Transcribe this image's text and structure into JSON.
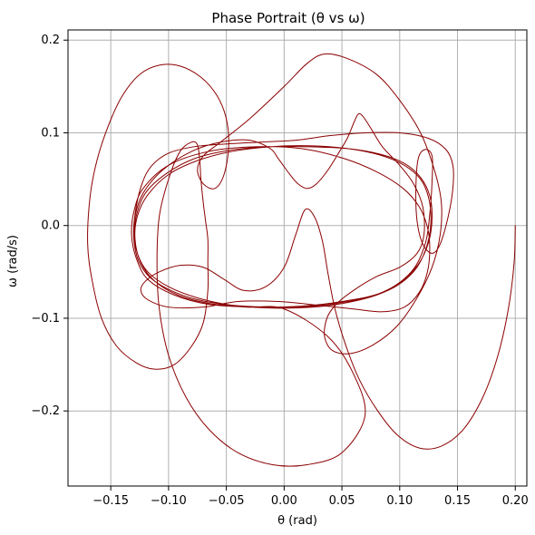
{
  "chart_data": {
    "type": "line",
    "title": "Phase Portrait (θ vs ω)",
    "xlabel": "θ (rad)",
    "ylabel": "ω (rad/s)",
    "xlim": [
      -0.187,
      0.21
    ],
    "ylim": [
      -0.281,
      0.211
    ],
    "xticks": [
      -0.15,
      -0.1,
      -0.05,
      0.0,
      0.05,
      0.1,
      0.15,
      0.2
    ],
    "xtick_labels": [
      "−0.15",
      "−0.10",
      "−0.05",
      "0.00",
      "0.05",
      "0.10",
      "0.15",
      "0.20"
    ],
    "yticks": [
      -0.2,
      -0.1,
      0.0,
      0.1,
      0.2
    ],
    "ytick_labels": [
      "−0.2",
      "−0.1",
      "0.0",
      "0.1",
      "0.2"
    ],
    "grid": true,
    "line_color": "#8b0000",
    "series": [
      {
        "points": [
          [
            0.2,
            0.0
          ],
          [
            0.199,
            -0.04
          ],
          [
            0.194,
            -0.09
          ],
          [
            0.185,
            -0.14
          ],
          [
            0.172,
            -0.185
          ],
          [
            0.155,
            -0.22
          ],
          [
            0.136,
            -0.238
          ],
          [
            0.117,
            -0.24
          ],
          [
            0.098,
            -0.226
          ],
          [
            0.081,
            -0.2
          ],
          [
            0.065,
            -0.166
          ],
          [
            0.053,
            -0.128
          ],
          [
            0.044,
            -0.09
          ],
          [
            0.038,
            -0.052
          ],
          [
            0.033,
            -0.016
          ],
          [
            0.026,
            0.01
          ],
          [
            0.018,
            0.017
          ],
          [
            0.01,
            -0.01
          ],
          [
            0.0,
            -0.045
          ],
          [
            -0.016,
            -0.066
          ],
          [
            -0.035,
            -0.07
          ],
          [
            -0.052,
            -0.058
          ],
          [
            -0.07,
            -0.045
          ],
          [
            -0.09,
            -0.043
          ],
          [
            -0.108,
            -0.05
          ],
          [
            -0.12,
            -0.06
          ],
          [
            -0.124,
            -0.07
          ],
          [
            -0.118,
            -0.08
          ],
          [
            -0.1,
            -0.088
          ],
          [
            -0.07,
            -0.088
          ],
          [
            -0.04,
            -0.082
          ],
          [
            -0.005,
            -0.082
          ],
          [
            0.03,
            -0.086
          ],
          [
            0.06,
            -0.09
          ],
          [
            0.085,
            -0.093
          ],
          [
            0.104,
            -0.088
          ],
          [
            0.117,
            -0.072
          ],
          [
            0.124,
            -0.05
          ],
          [
            0.126,
            -0.025
          ],
          [
            0.124,
            -0.002
          ],
          [
            0.117,
            0.02
          ],
          [
            0.103,
            0.04
          ],
          [
            0.08,
            0.058
          ],
          [
            0.05,
            0.073
          ],
          [
            0.015,
            0.083
          ],
          [
            -0.025,
            0.085
          ],
          [
            -0.065,
            0.08
          ],
          [
            -0.1,
            0.065
          ],
          [
            -0.122,
            0.04
          ],
          [
            -0.13,
            0.015
          ],
          [
            -0.132,
            -0.01
          ],
          [
            -0.128,
            -0.035
          ],
          [
            -0.118,
            -0.058
          ],
          [
            -0.095,
            -0.075
          ],
          [
            -0.065,
            -0.085
          ],
          [
            -0.025,
            -0.088
          ],
          [
            0.015,
            -0.087
          ],
          [
            0.05,
            -0.082
          ],
          [
            0.085,
            -0.072
          ],
          [
            0.11,
            -0.05
          ],
          [
            0.122,
            -0.02
          ],
          [
            0.126,
            0.012
          ],
          [
            0.128,
            0.048
          ],
          [
            0.128,
            0.075
          ],
          [
            0.122,
            0.082
          ],
          [
            0.116,
            0.072
          ],
          [
            0.114,
            0.04
          ],
          [
            0.115,
            0.005
          ],
          [
            0.12,
            -0.02
          ],
          [
            0.128,
            -0.03
          ],
          [
            0.135,
            -0.02
          ],
          [
            0.142,
            0.01
          ],
          [
            0.146,
            0.04
          ],
          [
            0.146,
            0.065
          ],
          [
            0.14,
            0.082
          ],
          [
            0.125,
            0.094
          ],
          [
            0.1,
            0.1
          ],
          [
            0.07,
            0.1
          ],
          [
            0.04,
            0.097
          ],
          [
            0.01,
            0.092
          ],
          [
            -0.02,
            0.09
          ],
          [
            -0.05,
            0.088
          ],
          [
            -0.078,
            0.085
          ],
          [
            -0.1,
            0.078
          ],
          [
            -0.115,
            0.064
          ],
          [
            -0.123,
            0.045
          ],
          [
            -0.128,
            0.02
          ],
          [
            -0.13,
            -0.005
          ],
          [
            -0.127,
            -0.03
          ],
          [
            -0.118,
            -0.05
          ],
          [
            -0.1,
            -0.066
          ],
          [
            -0.075,
            -0.078
          ],
          [
            -0.045,
            -0.086
          ],
          [
            -0.01,
            -0.089
          ],
          [
            0.025,
            -0.088
          ],
          [
            0.055,
            -0.083
          ],
          [
            0.08,
            -0.075
          ],
          [
            0.1,
            -0.063
          ],
          [
            0.115,
            -0.045
          ],
          [
            0.124,
            -0.02
          ],
          [
            0.127,
            0.005
          ],
          [
            0.125,
            0.03
          ],
          [
            0.118,
            0.05
          ],
          [
            0.104,
            0.065
          ],
          [
            0.083,
            0.076
          ],
          [
            0.055,
            0.083
          ],
          [
            0.022,
            0.086
          ],
          [
            -0.012,
            0.085
          ],
          [
            -0.045,
            0.08
          ],
          [
            -0.075,
            0.07
          ],
          [
            -0.1,
            0.055
          ],
          [
            -0.118,
            0.033
          ],
          [
            -0.127,
            0.01
          ],
          [
            -0.129,
            -0.015
          ],
          [
            -0.124,
            -0.04
          ],
          [
            -0.112,
            -0.06
          ],
          [
            -0.092,
            -0.075
          ],
          [
            -0.065,
            -0.084
          ],
          [
            -0.033,
            -0.088
          ],
          [
            0.0,
            -0.09
          ],
          [
            0.038,
            -0.12
          ],
          [
            0.06,
            -0.16
          ],
          [
            0.07,
            -0.205
          ],
          [
            0.05,
            -0.245
          ],
          [
            0.02,
            -0.258
          ],
          [
            -0.01,
            -0.258
          ],
          [
            -0.04,
            -0.245
          ],
          [
            -0.065,
            -0.22
          ],
          [
            -0.085,
            -0.185
          ],
          [
            -0.1,
            -0.14
          ],
          [
            -0.108,
            -0.09
          ],
          [
            -0.11,
            -0.04
          ],
          [
            -0.108,
            0.01
          ],
          [
            -0.1,
            0.05
          ],
          [
            -0.09,
            0.08
          ],
          [
            -0.08,
            0.09
          ],
          [
            -0.075,
            0.087
          ],
          [
            -0.073,
            0.07
          ],
          [
            -0.072,
            0.05
          ],
          [
            -0.07,
            0.025
          ],
          [
            -0.068,
            0.005
          ],
          [
            -0.066,
            -0.015
          ],
          [
            -0.066,
            -0.04
          ],
          [
            -0.066,
            -0.07
          ],
          [
            -0.07,
            -0.105
          ],
          [
            -0.08,
            -0.13
          ],
          [
            -0.095,
            -0.15
          ],
          [
            -0.112,
            -0.155
          ],
          [
            -0.128,
            -0.148
          ],
          [
            -0.145,
            -0.13
          ],
          [
            -0.158,
            -0.1
          ],
          [
            -0.166,
            -0.06
          ],
          [
            -0.17,
            -0.02
          ],
          [
            -0.168,
            0.03
          ],
          [
            -0.162,
            0.07
          ],
          [
            -0.152,
            0.108
          ],
          [
            -0.14,
            0.14
          ],
          [
            -0.125,
            0.163
          ],
          [
            -0.108,
            0.173
          ],
          [
            -0.09,
            0.172
          ],
          [
            -0.072,
            0.16
          ],
          [
            -0.058,
            0.14
          ],
          [
            -0.05,
            0.115
          ],
          [
            -0.048,
            0.085
          ],
          [
            -0.052,
            0.055
          ],
          [
            -0.06,
            0.04
          ],
          [
            -0.07,
            0.045
          ],
          [
            -0.075,
            0.06
          ],
          [
            -0.07,
            0.075
          ],
          [
            -0.055,
            0.09
          ],
          [
            -0.03,
            0.115
          ],
          [
            0.0,
            0.15
          ],
          [
            0.02,
            0.175
          ],
          [
            0.035,
            0.185
          ],
          [
            0.055,
            0.18
          ],
          [
            0.08,
            0.163
          ],
          [
            0.1,
            0.135
          ],
          [
            0.118,
            0.1
          ],
          [
            0.13,
            0.06
          ],
          [
            0.136,
            0.025
          ],
          [
            0.135,
            -0.01
          ],
          [
            0.128,
            -0.045
          ],
          [
            0.115,
            -0.078
          ],
          [
            0.098,
            -0.108
          ],
          [
            0.078,
            -0.128
          ],
          [
            0.058,
            -0.138
          ],
          [
            0.042,
            -0.135
          ],
          [
            0.035,
            -0.12
          ],
          [
            0.037,
            -0.1
          ],
          [
            0.045,
            -0.085
          ],
          [
            0.06,
            -0.07
          ],
          [
            0.08,
            -0.055
          ],
          [
            0.1,
            -0.045
          ],
          [
            0.115,
            -0.03
          ],
          [
            0.121,
            -0.01
          ],
          [
            0.12,
            0.02
          ],
          [
            0.112,
            0.045
          ],
          [
            0.1,
            0.065
          ],
          [
            0.085,
            0.085
          ],
          [
            0.075,
            0.105
          ],
          [
            0.068,
            0.118
          ],
          [
            0.064,
            0.12
          ],
          [
            0.06,
            0.11
          ],
          [
            0.055,
            0.095
          ],
          [
            0.048,
            0.08
          ],
          [
            0.038,
            0.06
          ],
          [
            0.028,
            0.045
          ],
          [
            0.02,
            0.04
          ],
          [
            0.012,
            0.045
          ],
          [
            0.005,
            0.055
          ],
          [
            -0.005,
            0.072
          ],
          [
            -0.012,
            0.083
          ],
          [
            -0.03,
            0.092
          ],
          [
            -0.055,
            0.09
          ],
          [
            -0.08,
            0.08
          ],
          [
            -0.105,
            0.06
          ],
          [
            -0.122,
            0.035
          ],
          [
            -0.129,
            0.01
          ],
          [
            -0.13,
            -0.015
          ],
          [
            -0.126,
            -0.038
          ],
          [
            -0.116,
            -0.056
          ],
          [
            -0.098,
            -0.07
          ],
          [
            -0.075,
            -0.08
          ],
          [
            -0.045,
            -0.086
          ],
          [
            -0.01,
            -0.088
          ],
          [
            0.025,
            -0.087
          ],
          [
            0.055,
            -0.082
          ],
          [
            0.08,
            -0.075
          ],
          [
            0.1,
            -0.062
          ],
          [
            0.116,
            -0.042
          ],
          [
            0.125,
            -0.018
          ],
          [
            0.128,
            0.008
          ],
          [
            0.126,
            0.032
          ],
          [
            0.118,
            0.052
          ],
          [
            0.104,
            0.067
          ],
          [
            0.083,
            0.077
          ],
          [
            0.055,
            0.083
          ],
          [
            0.02,
            0.085
          ],
          [
            -0.015,
            0.085
          ],
          [
            -0.048,
            0.081
          ],
          [
            -0.078,
            0.072
          ],
          [
            -0.102,
            0.056
          ],
          [
            -0.12,
            0.035
          ],
          [
            -0.128,
            0.01
          ],
          [
            -0.13,
            -0.012
          ]
        ]
      }
    ]
  }
}
